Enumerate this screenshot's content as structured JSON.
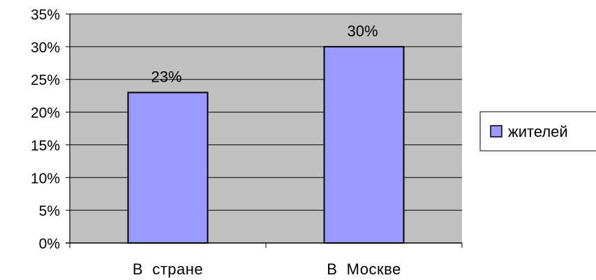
{
  "chart_data": {
    "type": "bar",
    "categories": [
      "В  стране",
      "В  Москве"
    ],
    "series": [
      {
        "name": "жителей",
        "values": [
          0.23,
          0.3
        ]
      }
    ],
    "data_labels": [
      "23%",
      "30%"
    ],
    "y_ticks": [
      "0%",
      "5%",
      "10%",
      "15%",
      "20%",
      "25%",
      "30%",
      "35%"
    ],
    "ylim": [
      0,
      0.35
    ],
    "grid": true,
    "legend_position": "right",
    "title": "",
    "xlabel": "",
    "ylabel": "",
    "colors": {
      "plot_background": "#c0c0c0",
      "bar_fill": "#9999ff",
      "bar_stroke": "#000000",
      "gridline": "#000000"
    }
  }
}
